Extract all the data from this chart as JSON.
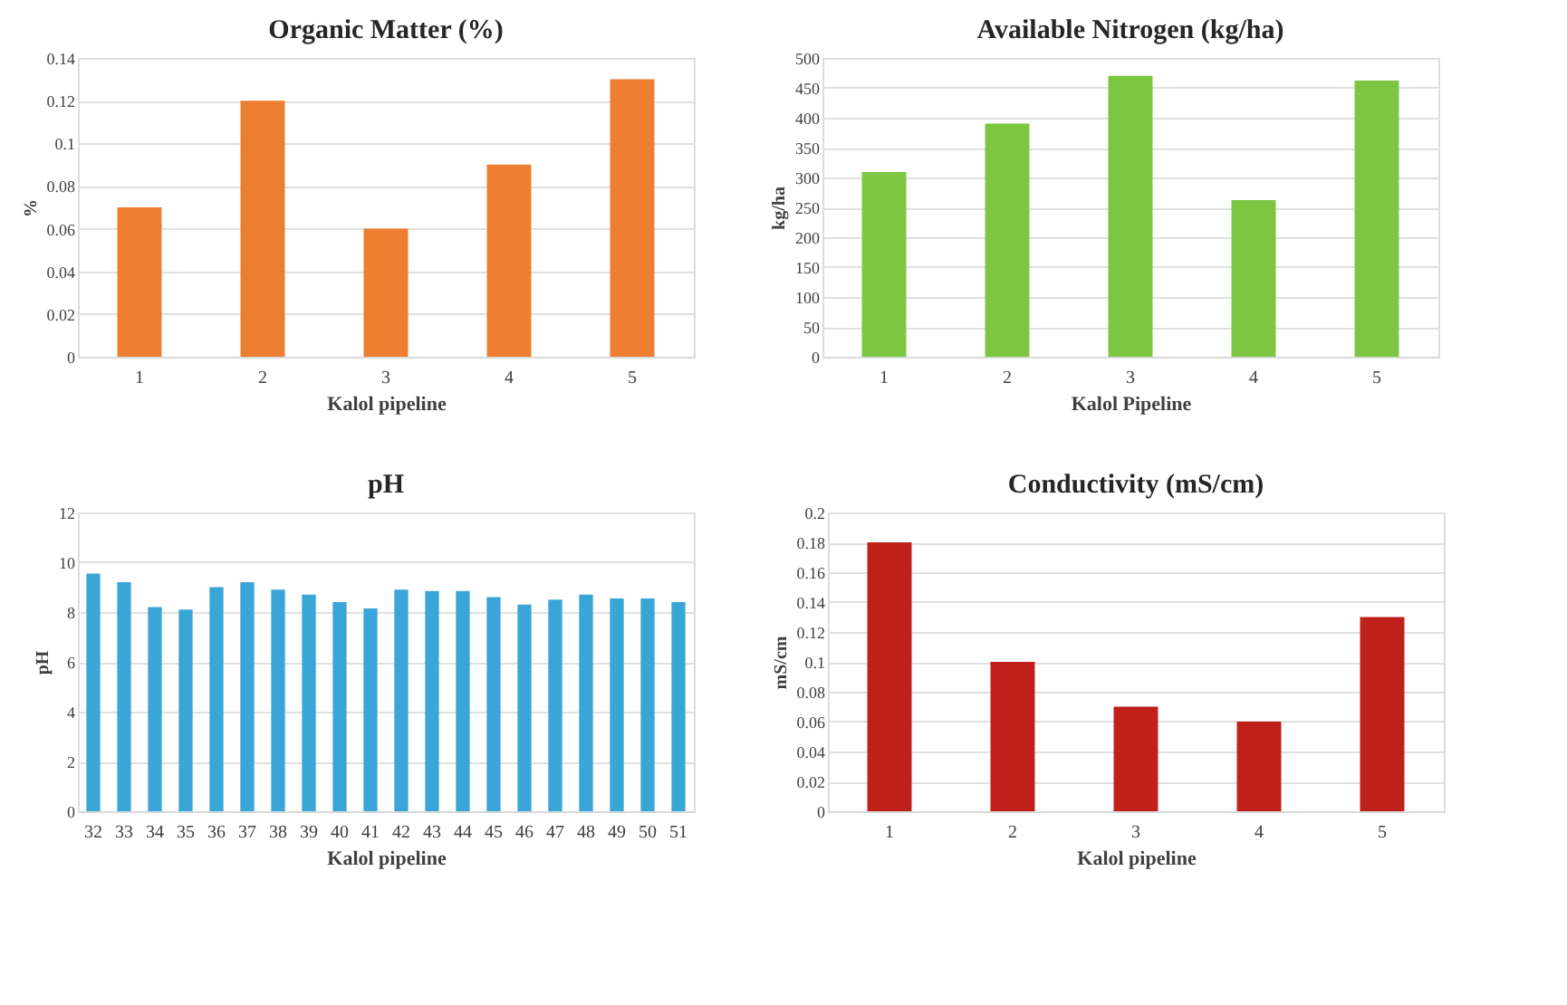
{
  "chart_data": [
    {
      "type": "bar",
      "title": "Organic Matter (%)",
      "xlabel": "Kalol pipeline",
      "ylabel": "%",
      "categories": [
        "1",
        "2",
        "3",
        "4",
        "5"
      ],
      "values": [
        0.07,
        0.12,
        0.06,
        0.09,
        0.13
      ],
      "color": "#ed7d31",
      "ylim": [
        0,
        0.14
      ],
      "yticks": [
        0,
        0.02,
        0.04,
        0.06,
        0.08,
        0.1,
        0.12,
        0.14
      ],
      "grid": "y"
    },
    {
      "type": "bar",
      "title": "Available Nitrogen (kg/ha)",
      "xlabel": "Kalol Pipeline",
      "ylabel": "kg/ha",
      "categories": [
        "1",
        "2",
        "3",
        "4",
        "5"
      ],
      "values": [
        309,
        390,
        470,
        262,
        462
      ],
      "color": "#7dc642",
      "ylim": [
        0,
        500
      ],
      "yticks": [
        0,
        50,
        100,
        150,
        200,
        250,
        300,
        350,
        400,
        450,
        500
      ],
      "grid": "y"
    },
    {
      "type": "bar",
      "title": "pH",
      "xlabel": "Kalol pipeline",
      "ylabel": "pH",
      "categories": [
        "32",
        "33",
        "34",
        "35",
        "36",
        "37",
        "38",
        "39",
        "40",
        "41",
        "42",
        "43",
        "44",
        "45",
        "46",
        "47",
        "48",
        "49",
        "50",
        "51"
      ],
      "values": [
        9.55,
        9.2,
        8.2,
        8.1,
        9.0,
        9.2,
        8.9,
        8.7,
        8.4,
        8.15,
        8.9,
        8.85,
        8.85,
        8.6,
        8.3,
        8.5,
        8.7,
        8.55,
        8.55,
        8.4
      ],
      "color": "#3aa6d8",
      "ylim": [
        0,
        12
      ],
      "yticks": [
        0,
        2,
        4,
        6,
        8,
        10,
        12
      ],
      "grid": "y"
    },
    {
      "type": "bar",
      "title": "Conductivity (mS/cm)",
      "xlabel": "Kalol pipeline",
      "ylabel": "mS/cm",
      "categories": [
        "1",
        "2",
        "3",
        "4",
        "5"
      ],
      "values": [
        0.18,
        0.1,
        0.07,
        0.06,
        0.13
      ],
      "color": "#c0201a",
      "ylim": [
        0,
        0.2
      ],
      "yticks": [
        0,
        0.02,
        0.04,
        0.06,
        0.08,
        0.1,
        0.12,
        0.14,
        0.16,
        0.18,
        0.2
      ],
      "grid": "y"
    }
  ]
}
